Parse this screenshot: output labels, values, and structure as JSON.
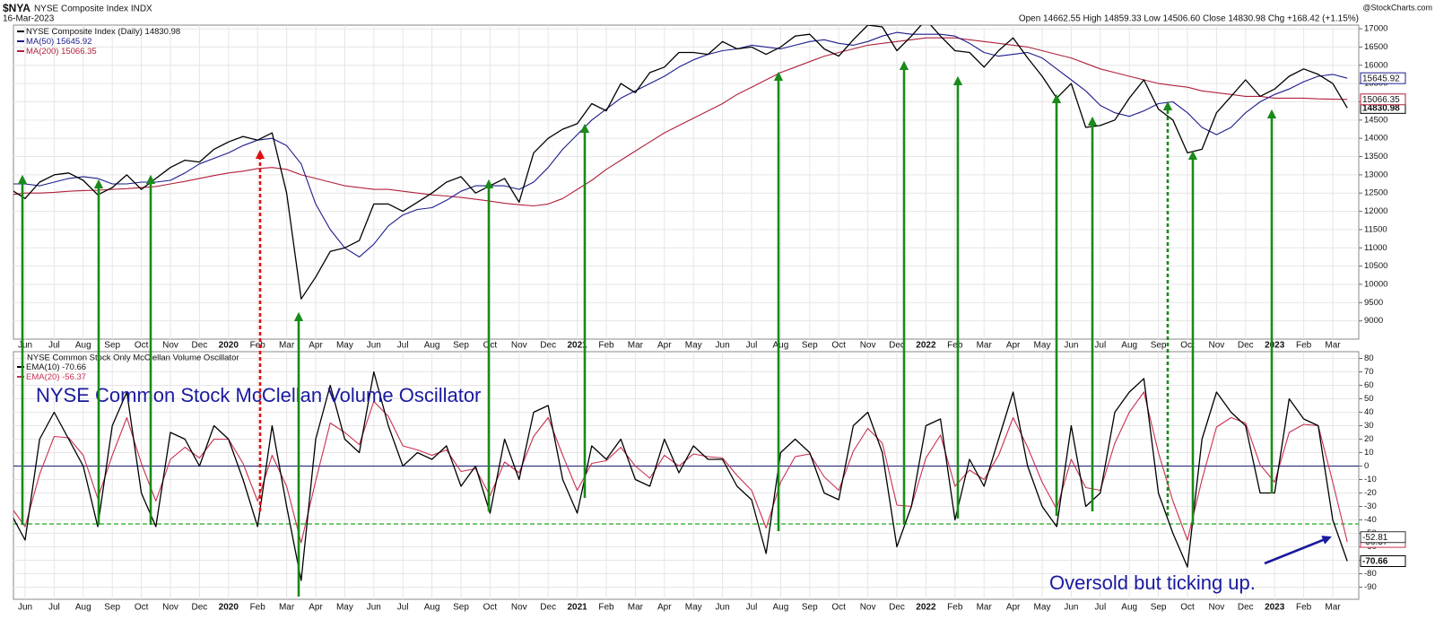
{
  "header": {
    "symbol": "$NYA",
    "name": "NYSE Composite Index INDX",
    "date": "16-Mar-2023",
    "quote": "Open 14662.55 High 14859.33 Low 14506.60 Close 14830.98 Chg +168.42 (+1.15%)",
    "credit": "@StockCharts.com"
  },
  "chart_data": [
    {
      "type": "line",
      "categories": [
        null,
        "Jun",
        null,
        "Jul",
        null,
        "Aug",
        null,
        "Sep",
        null,
        "Oct",
        null,
        "Nov",
        null,
        "Dec",
        null,
        "2020",
        null,
        "Feb",
        null,
        "Mar",
        null,
        "Apr",
        null,
        "May",
        null,
        "Jun",
        null,
        "Jul",
        null,
        "Aug",
        null,
        "Sep",
        null,
        "Oct",
        null,
        "Nov",
        null,
        "Dec",
        null,
        "2021",
        null,
        "Feb",
        null,
        "Mar",
        null,
        "Apr",
        null,
        "May",
        null,
        "Jun",
        null,
        "Jul",
        null,
        "Aug",
        null,
        "Sep",
        null,
        "Oct",
        null,
        "Nov",
        null,
        "Dec",
        null,
        "2022",
        null,
        "Feb",
        null,
        "Mar",
        null,
        "Apr",
        null,
        "May",
        null,
        "Jun",
        null,
        "Jul",
        null,
        "Aug",
        null,
        "Sep",
        null,
        "Oct",
        null,
        "Nov",
        null,
        "Dec",
        null,
        "2023",
        null,
        "Feb",
        null,
        "Mar",
        null
      ],
      "series": [
        {
          "name": "NYSE Composite Index (Daily)",
          "color": "#000000",
          "values": [
            12600,
            12350,
            12800,
            13000,
            13050,
            12850,
            12450,
            12650,
            13000,
            12600,
            12900,
            13200,
            13400,
            13350,
            13700,
            13900,
            14050,
            13950,
            14150,
            12500,
            9600,
            10200,
            10900,
            11000,
            11200,
            12200,
            12200,
            12000,
            12250,
            12500,
            12800,
            12950,
            12500,
            12700,
            12900,
            12250,
            13600,
            14000,
            14250,
            14400,
            14950,
            14750,
            15500,
            15250,
            15800,
            15950,
            16350,
            16350,
            16300,
            16650,
            16450,
            16500,
            16300,
            16500,
            16800,
            16850,
            16450,
            16250,
            16700,
            17100,
            17050,
            16400,
            16800,
            17250,
            16800,
            16400,
            16350,
            15950,
            16400,
            16750,
            16200,
            15700,
            15100,
            15500,
            14300,
            14350,
            14500,
            15100,
            15600,
            14800,
            14500,
            13600,
            13700,
            14700,
            15150,
            15600,
            15150,
            15350,
            15700,
            15900,
            15750,
            15500,
            14830.98
          ]
        },
        {
          "name": "MA(50)",
          "color": "#1c1c8c",
          "values": [
            12750,
            12750,
            12700,
            12800,
            12900,
            12950,
            12900,
            12750,
            12750,
            12800,
            12800,
            12850,
            13050,
            13300,
            13450,
            13600,
            13800,
            13950,
            14000,
            13800,
            13300,
            12200,
            11500,
            11000,
            10750,
            11100,
            11600,
            11900,
            12050,
            12100,
            12300,
            12550,
            12700,
            12700,
            12700,
            12600,
            12800,
            13200,
            13700,
            14100,
            14500,
            14800,
            15100,
            15300,
            15500,
            15700,
            15950,
            16150,
            16300,
            16400,
            16450,
            16550,
            16500,
            16450,
            16550,
            16650,
            16700,
            16600,
            16550,
            16650,
            16800,
            16900,
            16850,
            16850,
            16850,
            16800,
            16600,
            16350,
            16250,
            16300,
            16350,
            16200,
            15900,
            15600,
            15300,
            14900,
            14700,
            14600,
            14750,
            14950,
            15000,
            14700,
            14300,
            14100,
            14300,
            14700,
            15000,
            15200,
            15350,
            15550,
            15700,
            15750,
            15645.92
          ]
        },
        {
          "name": "MA(200)",
          "color": "#b0203a",
          "values": [
            12450,
            12500,
            12500,
            12520,
            12550,
            12570,
            12580,
            12600,
            12620,
            12650,
            12680,
            12750,
            12820,
            12900,
            12980,
            13050,
            13100,
            13170,
            13200,
            13150,
            13000,
            12900,
            12800,
            12700,
            12650,
            12600,
            12600,
            12550,
            12500,
            12450,
            12420,
            12380,
            12330,
            12280,
            12220,
            12180,
            12150,
            12200,
            12350,
            12600,
            12850,
            13150,
            13400,
            13650,
            13900,
            14150,
            14350,
            14550,
            14750,
            14950,
            15200,
            15400,
            15600,
            15800,
            15950,
            16100,
            16250,
            16350,
            16450,
            16550,
            16600,
            16650,
            16700,
            16750,
            16750,
            16750,
            16700,
            16650,
            16600,
            16550,
            16500,
            16400,
            16300,
            16200,
            16050,
            15900,
            15800,
            15700,
            15600,
            15500,
            15450,
            15400,
            15300,
            15250,
            15200,
            15150,
            15150,
            15100,
            15100,
            15100,
            15080,
            15070,
            15066.35
          ]
        }
      ],
      "ylim": [
        8500,
        17100
      ],
      "yticks": [
        9000,
        9500,
        10000,
        10500,
        11000,
        11500,
        12000,
        12500,
        13000,
        13500,
        14000,
        14500,
        15000,
        15500,
        16000,
        16500,
        17000
      ],
      "grid": true
    },
    {
      "type": "line",
      "title": "NYSE Common Stock Only McClellan Volume Oscillator",
      "annotations": [
        "NYSE Common Stock McClellan Volume Oscillator",
        "Oversold but ticking up."
      ],
      "categories": [
        null,
        "Jun",
        null,
        "Jul",
        null,
        "Aug",
        null,
        "Sep",
        null,
        "Oct",
        null,
        "Nov",
        null,
        "Dec",
        null,
        "2020",
        null,
        "Feb",
        null,
        "Mar",
        null,
        "Apr",
        null,
        "May",
        null,
        "Jun",
        null,
        "Jul",
        null,
        "Aug",
        null,
        "Sep",
        null,
        "Oct",
        null,
        "Nov",
        null,
        "Dec",
        null,
        "2021",
        null,
        "Feb",
        null,
        "Mar",
        null,
        "Apr",
        null,
        "May",
        null,
        "Jun",
        null,
        "Jul",
        null,
        "Aug",
        null,
        "Sep",
        null,
        "Oct",
        null,
        "Nov",
        null,
        "Dec",
        null,
        "2022",
        null,
        "Feb",
        null,
        "Mar",
        null,
        "Apr",
        null,
        "May",
        null,
        "Jun",
        null,
        "Jul",
        null,
        "Aug",
        null,
        "Sep",
        null,
        "Oct",
        null,
        "Nov",
        null,
        "Dec",
        null,
        "2023",
        null,
        "Feb",
        null,
        "Mar",
        null
      ],
      "series": [
        {
          "name": "EMA(10)",
          "color": "#000000",
          "values": [
            -35,
            -55,
            20,
            40,
            20,
            0,
            -45,
            30,
            55,
            -20,
            -45,
            25,
            20,
            0,
            30,
            20,
            -10,
            -45,
            30,
            -30,
            -85,
            20,
            60,
            20,
            10,
            70,
            30,
            0,
            10,
            5,
            15,
            -15,
            0,
            -35,
            20,
            -10,
            40,
            45,
            -10,
            -35,
            15,
            5,
            20,
            -10,
            -15,
            20,
            -5,
            15,
            5,
            5,
            -15,
            -25,
            -65,
            10,
            20,
            10,
            -20,
            -25,
            30,
            40,
            10,
            -60,
            -30,
            30,
            35,
            -40,
            5,
            -15,
            20,
            55,
            0,
            -30,
            -45,
            30,
            -30,
            -20,
            40,
            55,
            65,
            -20,
            -50,
            -75,
            20,
            55,
            40,
            30,
            -20,
            -20,
            50,
            35,
            30,
            -40,
            -70.66
          ]
        },
        {
          "name": "EMA(20)",
          "color": "#c8304e",
          "values": [
            -30,
            -45,
            -6,
            22,
            21,
            8,
            -24,
            8,
            36,
            2,
            -26,
            5,
            14,
            6,
            20,
            20,
            2,
            -26,
            8,
            -15,
            -57,
            -11,
            32,
            25,
            16,
            48,
            37,
            15,
            12,
            8,
            12,
            -4,
            -2,
            -22,
            3,
            -5,
            22,
            36,
            8,
            -18,
            2,
            4,
            14,
            0,
            -9,
            8,
            0,
            9,
            7,
            6,
            -7,
            -18,
            -46,
            -12,
            7,
            9,
            -8,
            -18,
            11,
            28,
            17,
            -29,
            -30,
            6,
            23,
            -15,
            -3,
            -10,
            8,
            36,
            14,
            -12,
            -32,
            5,
            -16,
            -18,
            17,
            40,
            55,
            10,
            -26,
            -55,
            -10,
            29,
            36,
            32,
            1,
            -12,
            25,
            31,
            30,
            -12,
            -56.37
          ]
        }
      ],
      "ylim": [
        -99,
        85
      ],
      "yticks": [
        -90,
        -80,
        -70,
        -60,
        -50,
        -40,
        -30,
        -20,
        -10,
        0,
        10,
        20,
        30,
        40,
        50,
        60,
        70,
        80
      ],
      "grid": true,
      "reference_lines": [
        {
          "value": 0,
          "color": "#1c1c6c",
          "dashed": false
        },
        {
          "value": -43,
          "color": "#22aa22",
          "dashed": true
        }
      ],
      "marker_labels": [
        -52.81
      ]
    }
  ]
}
